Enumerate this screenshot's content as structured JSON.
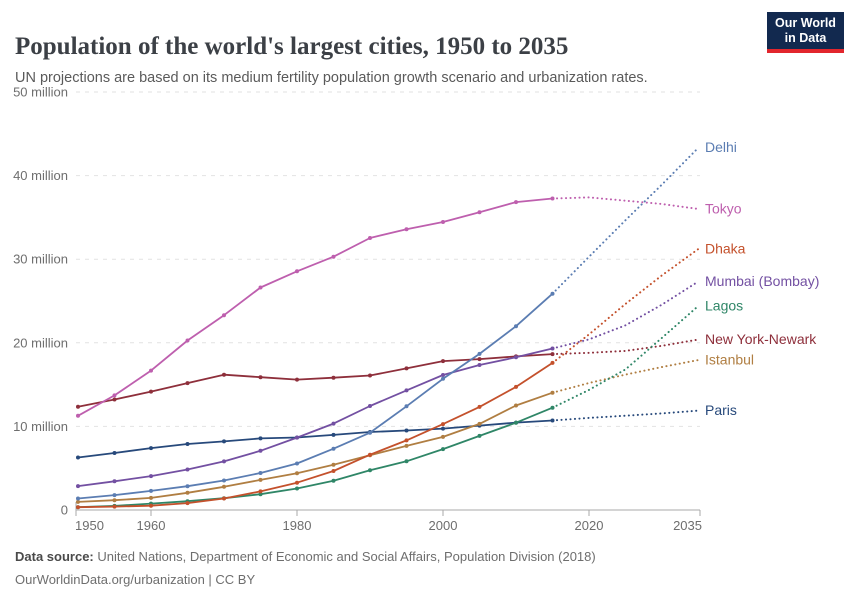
{
  "header": {
    "title": "Population of the world's largest cities, 1950 to 2035",
    "subtitle": "UN projections are based on its medium fertility population growth scenario and urbanization rates."
  },
  "logo": {
    "line1": "Our World",
    "line2": "in Data",
    "bg_color": "#12294f",
    "accent_color": "#e2262d"
  },
  "chart_data": {
    "type": "line",
    "title": "Population of the world's largest cities, 1950 to 2035",
    "xlabel": "",
    "ylabel": "",
    "unit": "million people",
    "xlim": [
      1950,
      2035
    ],
    "ylim": [
      0,
      50
    ],
    "grid": "dashed horizontal",
    "legend_position": "right of line ends",
    "projection_from_year": 2015,
    "projection_style": "dotted",
    "x": [
      1950,
      1955,
      1960,
      1965,
      1970,
      1975,
      1980,
      1985,
      1990,
      1995,
      2000,
      2005,
      2010,
      2015,
      2020,
      2025,
      2030,
      2035
    ],
    "x_ticks": [
      {
        "year": 1950,
        "label": "1950"
      },
      {
        "year": 1960,
        "label": "1960"
      },
      {
        "year": 1980,
        "label": "1980"
      },
      {
        "year": 2000,
        "label": "2000"
      },
      {
        "year": 2020,
        "label": "2020"
      },
      {
        "year": 2035,
        "label": "2035"
      }
    ],
    "y_ticks": [
      {
        "v": 0,
        "label": "0"
      },
      {
        "v": 10,
        "label": "10 million"
      },
      {
        "v": 20,
        "label": "20 million"
      },
      {
        "v": 30,
        "label": "30 million"
      },
      {
        "v": 40,
        "label": "40 million"
      },
      {
        "v": 50,
        "label": "50 million"
      }
    ],
    "series": [
      {
        "name": "Delhi",
        "color": "#5b7db2",
        "values": [
          1.37,
          1.78,
          2.28,
          2.85,
          3.53,
          4.43,
          5.56,
          7.33,
          9.25,
          12.41,
          15.69,
          18.67,
          21.99,
          25.87,
          30.29,
          34.67,
          38.94,
          43.35
        ]
      },
      {
        "name": "Tokyo",
        "color": "#be5fae",
        "values": [
          11.27,
          13.71,
          16.68,
          20.28,
          23.3,
          26.61,
          28.55,
          30.3,
          32.53,
          33.59,
          34.45,
          35.62,
          36.83,
          37.26,
          37.39,
          37.0,
          36.6,
          36.0
        ]
      },
      {
        "name": "Dhaka",
        "color": "#c4512c",
        "values": [
          0.34,
          0.41,
          0.51,
          0.82,
          1.37,
          2.22,
          3.27,
          4.66,
          6.62,
          8.33,
          10.28,
          12.33,
          14.73,
          17.6,
          21.01,
          24.65,
          28.08,
          31.23
        ]
      },
      {
        "name": "Mumbai (Bombay)",
        "color": "#7350a2",
        "values": [
          2.86,
          3.43,
          4.06,
          4.85,
          5.81,
          7.08,
          8.66,
          10.34,
          12.44,
          14.31,
          16.15,
          17.35,
          18.26,
          19.32,
          20.41,
          22.09,
          24.57,
          27.34
        ]
      },
      {
        "name": "Lagos",
        "color": "#2f8667",
        "values": [
          0.33,
          0.49,
          0.76,
          1.05,
          1.41,
          1.89,
          2.57,
          3.5,
          4.76,
          5.83,
          7.28,
          8.86,
          10.44,
          12.24,
          14.37,
          16.82,
          20.6,
          24.42
        ]
      },
      {
        "name": "New York-Newark",
        "color": "#8e2f3b",
        "values": [
          12.34,
          13.22,
          14.16,
          15.18,
          16.19,
          15.88,
          15.6,
          15.83,
          16.09,
          16.94,
          17.81,
          18.05,
          18.37,
          18.65,
          18.8,
          19.03,
          19.64,
          20.4
        ]
      },
      {
        "name": "Istanbul",
        "color": "#b07e42",
        "values": [
          0.97,
          1.17,
          1.45,
          2.06,
          2.77,
          3.6,
          4.39,
          5.41,
          6.55,
          7.67,
          8.74,
          10.3,
          12.5,
          14.03,
          15.19,
          16.2,
          17.1,
          17.94
        ]
      },
      {
        "name": "Paris",
        "color": "#27497b",
        "values": [
          6.28,
          6.82,
          7.41,
          7.9,
          8.21,
          8.56,
          8.67,
          8.98,
          9.33,
          9.51,
          9.74,
          10.09,
          10.46,
          10.7,
          11.02,
          11.28,
          11.56,
          11.89
        ]
      }
    ]
  },
  "footer": {
    "source_label": "Data source:",
    "source_text": " United Nations, Department of Economic and Social Affairs, Population Division (2018)",
    "link_text": "OurWorldinData.org/urbanization | CC BY"
  }
}
